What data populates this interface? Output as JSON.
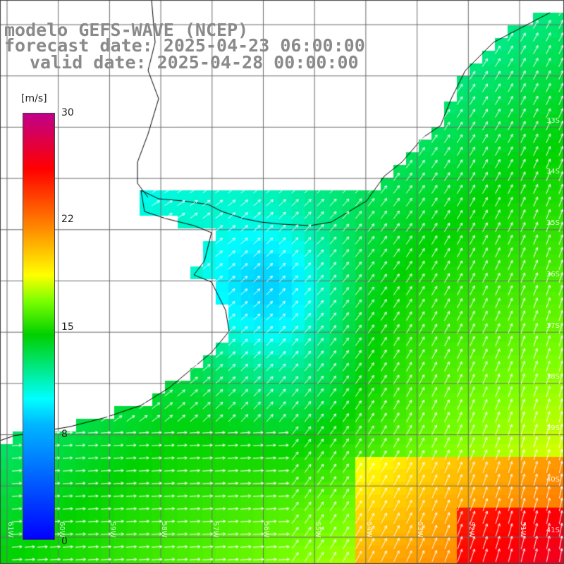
{
  "title": {
    "model": "modelo GEFS-WAVE (NCEP)",
    "forecast": "forecast date: 2025-04-23 06:00:00",
    "valid": "valid date: 2025-04-28 00:00:00"
  },
  "colorbar": {
    "unit": "[m/s]",
    "ticks": [
      "0",
      "8",
      "15",
      "22",
      "30"
    ],
    "tick_values": [
      0,
      8,
      15,
      22,
      30
    ],
    "range": [
      0,
      30
    ],
    "colors": [
      "#0000ff",
      "#00b7ff",
      "#00ffff",
      "#00d000",
      "#7cff00",
      "#ffff00",
      "#ff8000",
      "#ff0000",
      "#c0008a"
    ]
  },
  "map": {
    "variable": "wind speed with direction arrows",
    "land_color": "#ffffff",
    "grid_color": "#6b6b6b",
    "coastline_color": "#000000",
    "lat_labels": [
      "33S",
      "34S",
      "35S",
      "36S",
      "37S",
      "38S",
      "39S",
      "40S",
      "41S"
    ],
    "lon_labels": [
      "61W",
      "60W",
      "59W",
      "58W",
      "57W",
      "56W",
      "55W",
      "54W",
      "53W",
      "52W",
      "51W"
    ]
  }
}
